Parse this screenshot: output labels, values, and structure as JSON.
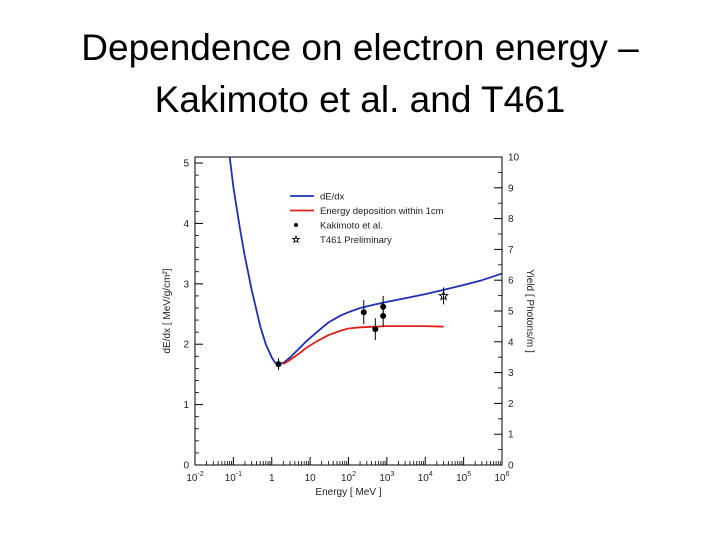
{
  "slide": {
    "title_line1": "Dependence on electron energy –",
    "title_line2": "Kakimoto et al. and T461"
  },
  "chart_data": {
    "type": "line",
    "xlabel": "Energy [ MeV ]",
    "ylabel": "dE/dx [ MeV/g/cm²]",
    "y2label": "Yield [ Photons/m ]",
    "xscale": "log",
    "xlim": [
      0.01,
      1000000
    ],
    "x_ticks": [
      {
        "v": 0.01,
        "base": "10",
        "exp": "-2"
      },
      {
        "v": 0.1,
        "base": "10",
        "exp": "-1"
      },
      {
        "v": 1,
        "base": "1",
        "exp": ""
      },
      {
        "v": 10,
        "base": "10",
        "exp": ""
      },
      {
        "v": 100,
        "base": "10",
        "exp": "2"
      },
      {
        "v": 1000,
        "base": "10",
        "exp": "3"
      },
      {
        "v": 10000,
        "base": "10",
        "exp": "4"
      },
      {
        "v": 100000,
        "base": "10",
        "exp": "5"
      },
      {
        "v": 1000000,
        "base": "10",
        "exp": "6"
      }
    ],
    "ylim": [
      0,
      5.1
    ],
    "y_ticks": [
      "0",
      "1",
      "2",
      "3",
      "4",
      "5"
    ],
    "y2lim": [
      0,
      10
    ],
    "y2_ticks": [
      "0",
      "1",
      "2",
      "3",
      "4",
      "5",
      "6",
      "7",
      "8",
      "9",
      "10"
    ],
    "legend_position": "top-left",
    "grid": false,
    "series": [
      {
        "name": "dE/dx",
        "color": "#1f2fb4",
        "axis": "left",
        "x": [
          0.08,
          0.1,
          0.15,
          0.2,
          0.3,
          0.5,
          0.7,
          1,
          1.2,
          1.5,
          2,
          3,
          5,
          8,
          15,
          30,
          60,
          100,
          200,
          500,
          1000,
          3000,
          10000,
          30000,
          100000,
          300000,
          1000000
        ],
        "y": [
          5.1,
          4.6,
          3.9,
          3.45,
          2.9,
          2.3,
          2.0,
          1.78,
          1.7,
          1.67,
          1.69,
          1.78,
          1.92,
          2.05,
          2.2,
          2.36,
          2.47,
          2.53,
          2.6,
          2.66,
          2.7,
          2.76,
          2.83,
          2.9,
          2.98,
          3.06,
          3.17
        ]
      },
      {
        "name": "Energy deposition within 1cm",
        "color": "#e0201a",
        "axis": "left",
        "x": [
          2,
          3,
          5,
          8,
          15,
          30,
          60,
          100,
          200,
          500,
          1000,
          3000,
          10000,
          30000
        ],
        "y": [
          1.67,
          1.74,
          1.84,
          1.94,
          2.05,
          2.15,
          2.22,
          2.26,
          2.28,
          2.29,
          2.3,
          2.3,
          2.3,
          2.29
        ]
      },
      {
        "name": "Kakimoto et al.",
        "color": "#000000",
        "axis": "left",
        "marker": "dot",
        "x": [
          1.5,
          250,
          500,
          800,
          800
        ],
        "y": [
          1.67,
          2.53,
          2.25,
          2.62,
          2.47
        ],
        "yerr": [
          0.1,
          0.2,
          0.18,
          0.18,
          0.18
        ]
      },
      {
        "name": "T461 Preliminary",
        "color": "#000000",
        "axis": "left",
        "marker": "star",
        "x": [
          30000
        ],
        "y": [
          2.8
        ],
        "yerr": [
          0.14
        ]
      }
    ]
  }
}
